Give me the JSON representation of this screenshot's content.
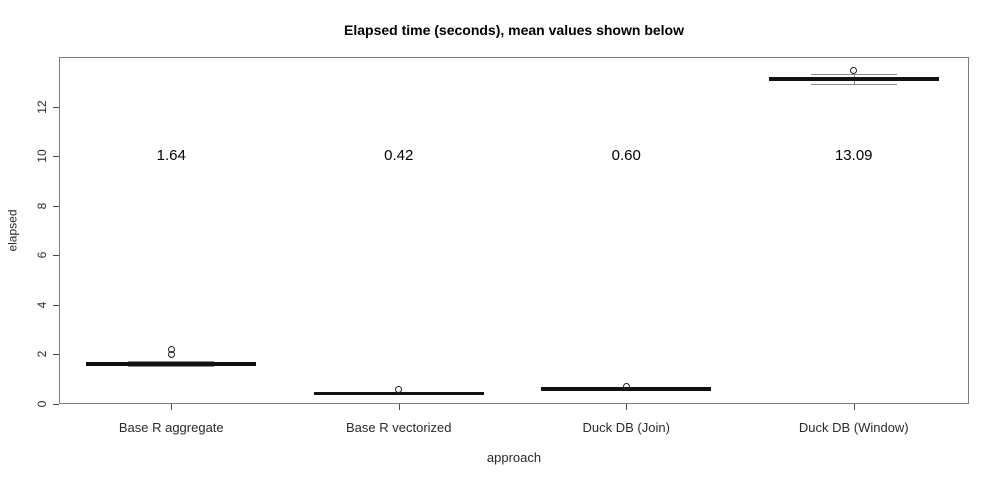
{
  "chart_data": {
    "type": "boxplot",
    "title": "Elapsed time (seconds), mean values shown below",
    "xlabel": "approach",
    "ylabel": "elapsed",
    "categories": [
      "Base R aggregate",
      "Base R vectorized",
      "Duck DB (Join)",
      "Duck DB (Window)"
    ],
    "means": [
      1.64,
      0.42,
      0.6,
      13.09
    ],
    "mean_labels": [
      "1.64",
      "0.42",
      "0.60",
      "13.09"
    ],
    "yticks": [
      0,
      2,
      4,
      6,
      8,
      10,
      12
    ],
    "ylim": [
      0,
      14
    ],
    "grid": false,
    "legend": null,
    "orientation": "vertical",
    "boxes": [
      {
        "category": "Base R aggregate",
        "median": 1.6,
        "q1": 1.57,
        "q3": 1.64,
        "whisker_low": 1.52,
        "whisker_high": 1.7,
        "outliers": [
          2.0,
          2.2
        ],
        "mean": 1.64
      },
      {
        "category": "Base R vectorized",
        "median": 0.41,
        "q1": 0.4,
        "q3": 0.43,
        "whisker_low": 0.38,
        "whisker_high": 0.46,
        "outliers": [
          0.55
        ],
        "mean": 0.42
      },
      {
        "category": "Duck DB (Join)",
        "median": 0.6,
        "q1": 0.58,
        "q3": 0.63,
        "whisker_low": 0.55,
        "whisker_high": 0.67,
        "outliers": [
          0.7
        ],
        "mean": 0.6
      },
      {
        "category": "Duck DB (Window)",
        "median": 13.12,
        "q1": 13.03,
        "q3": 13.2,
        "whisker_low": 12.9,
        "whisker_high": 13.3,
        "outliers": [
          13.47
        ],
        "mean": 13.09
      }
    ]
  }
}
